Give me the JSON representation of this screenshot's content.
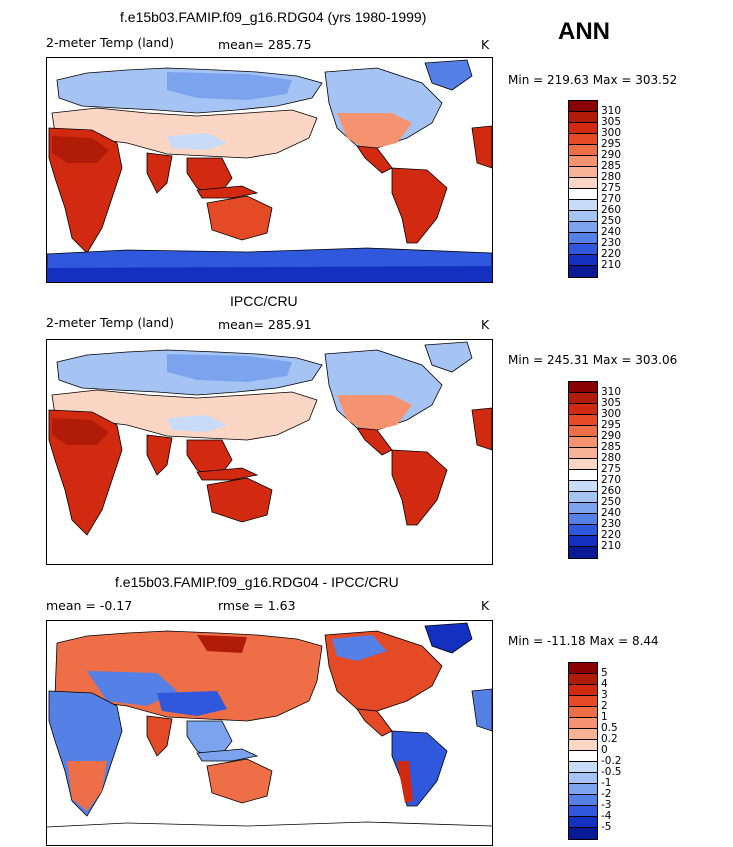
{
  "season": "ANN",
  "panels": [
    {
      "title": "f.e15b03.FAMIP.f09_g16.RDG04 (yrs 1980-1999)",
      "left_label": "2-meter Temp (land)",
      "center_label": "mean= 285.75",
      "units": "K",
      "minmax": "Min = 219.63 Max = 303.52"
    },
    {
      "title": "IPCC/CRU",
      "left_label": "2-meter Temp (land)",
      "center_label": "mean= 285.91",
      "units": "K",
      "minmax": "Min = 245.31 Max = 303.06"
    },
    {
      "title": "f.e15b03.FAMIP.f09_g16.RDG04 - IPCC/CRU",
      "left_label": "mean =   -0.17",
      "center_label": "rmse =    1.63",
      "units": "K",
      "minmax": "Min = -11.18 Max =   8.44"
    }
  ],
  "colorbars": {
    "temperature": {
      "labels": [
        "310",
        "305",
        "300",
        "295",
        "290",
        "285",
        "280",
        "275",
        "270",
        "260",
        "250",
        "240",
        "230",
        "220",
        "210"
      ],
      "colors": [
        "#8b0000",
        "#b01c08",
        "#d22a10",
        "#e44a25",
        "#ee6e48",
        "#f59270",
        "#f8b296",
        "#fbd6c4",
        "#ffffff",
        "#c8dcf8",
        "#a6c4f3",
        "#7ca4ee",
        "#5581e6",
        "#2f58dc",
        "#1430c0",
        "#0a1a96"
      ]
    },
    "difference": {
      "labels": [
        "5",
        "4",
        "3",
        "2",
        "1",
        "0.5",
        "0.2",
        "0",
        "-0.2",
        "-0.5",
        "-1",
        "-2",
        "-3",
        "-4",
        "-5"
      ],
      "colors": [
        "#8b0000",
        "#b01c08",
        "#d22a10",
        "#e44a25",
        "#ee6e48",
        "#f59270",
        "#f8b296",
        "#fbd6c4",
        "#ffffff",
        "#c8dcf8",
        "#a6c4f3",
        "#7ca4ee",
        "#5581e6",
        "#2f58dc",
        "#1430c0",
        "#0a1a96"
      ]
    }
  }
}
